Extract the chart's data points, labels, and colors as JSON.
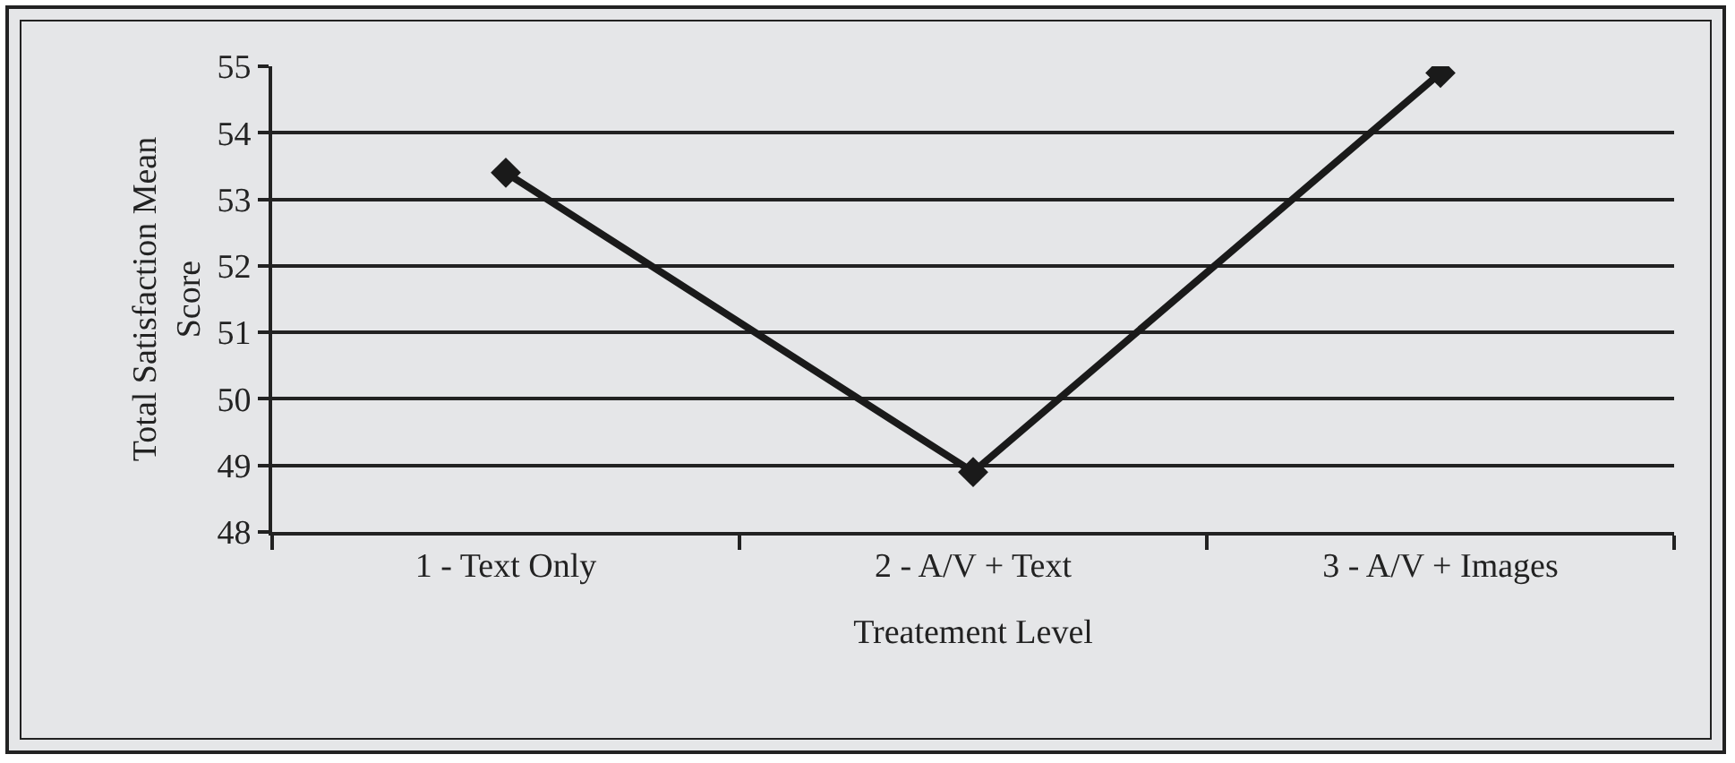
{
  "chart_data": {
    "type": "line",
    "xlabel": "Treatement Level",
    "ylabel": "Total Satisfaction Mean Score",
    "categories": [
      "1 - Text Only",
      "2 - A/V + Text",
      "3 - A/V + Images"
    ],
    "series": [
      {
        "color": "#1a1a1a",
        "values": [
          53.4,
          48.9,
          54.9
        ]
      }
    ],
    "ylim": [
      48,
      55
    ],
    "yticks": [
      48,
      49,
      50,
      51,
      52,
      53,
      54,
      55
    ],
    "grid": "y",
    "marker": "diamond",
    "line_style": "solid"
  }
}
